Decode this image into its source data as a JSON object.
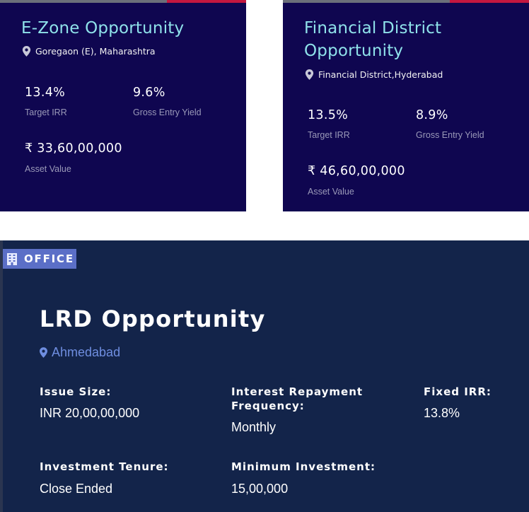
{
  "cards": [
    {
      "title_lines": [
        "E-Zone Opportunity"
      ],
      "location": "Goregaon (E), Maharashtra",
      "metrics": [
        {
          "value": "13.4%",
          "label": "Target IRR"
        },
        {
          "value": "9.6%",
          "label": "Gross Entry Yield"
        }
      ],
      "asset_value": "₹ 33,60,00,000",
      "asset_label": "Asset Value"
    },
    {
      "title_lines": [
        "Financial District",
        "Opportunity"
      ],
      "location": "Financial District,Hyderabad",
      "metrics": [
        {
          "value": "13.5%",
          "label": "Target IRR"
        },
        {
          "value": "8.9%",
          "label": "Gross Entry Yield"
        }
      ],
      "asset_value": "₹ 46,60,00,000",
      "asset_label": "Asset Value"
    }
  ],
  "lrd": {
    "badge": "OFFICE",
    "badge_icon": "building-icon",
    "title": "LRD Opportunity",
    "location": "Ahmedabad",
    "fields": [
      {
        "label": "Issue Size:",
        "value": "INR 20,00,00,000"
      },
      {
        "label": "Interest Repayment Frequency:",
        "value": "Monthly"
      },
      {
        "label": "Fixed IRR:",
        "value": "13.8%"
      },
      {
        "label": "Investment Tenure:",
        "value": "Close Ended"
      },
      {
        "label": "Minimum Investment:",
        "value": "15,00,000"
      }
    ]
  },
  "colors": {
    "card_bg": "#0f0650",
    "card_title": "#8fe2ea",
    "lrd_bg": "#13244a",
    "badge_bg": "#5b6fc7",
    "lrd_location": "#6f8ee0"
  }
}
